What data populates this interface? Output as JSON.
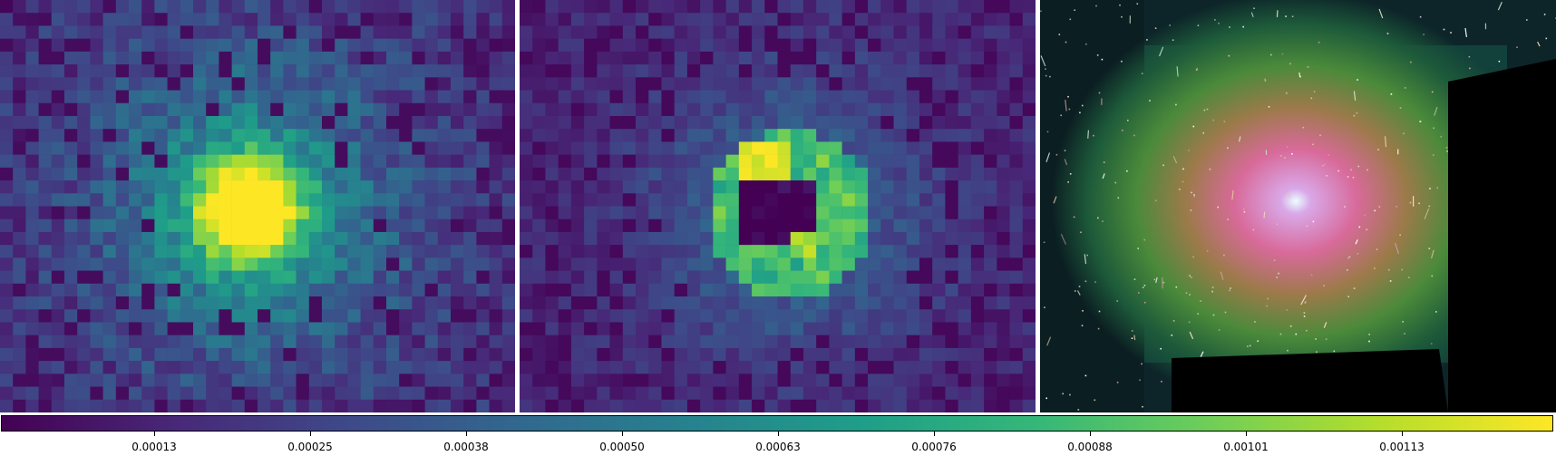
{
  "figure": {
    "panels": [
      {
        "id": "left",
        "description_tag": "pixelated-blob",
        "colormap": "viridis"
      },
      {
        "id": "middle",
        "description_tag": "pixelated-ring",
        "colormap": "viridis"
      },
      {
        "id": "right",
        "description_tag": "galaxy-field-rgb"
      }
    ],
    "colorbar": {
      "colormap": "viridis",
      "ticks": [
        "0.00013",
        "0.00025",
        "0.00038",
        "0.00050",
        "0.00063",
        "0.00076",
        "0.00088",
        "0.00101",
        "0.00113"
      ],
      "colors": [
        "#440154",
        "#482878",
        "#3e4989",
        "#31688e",
        "#26828e",
        "#1f9e89",
        "#35b779",
        "#6ece58",
        "#b5de2b",
        "#fde725"
      ]
    }
  }
}
